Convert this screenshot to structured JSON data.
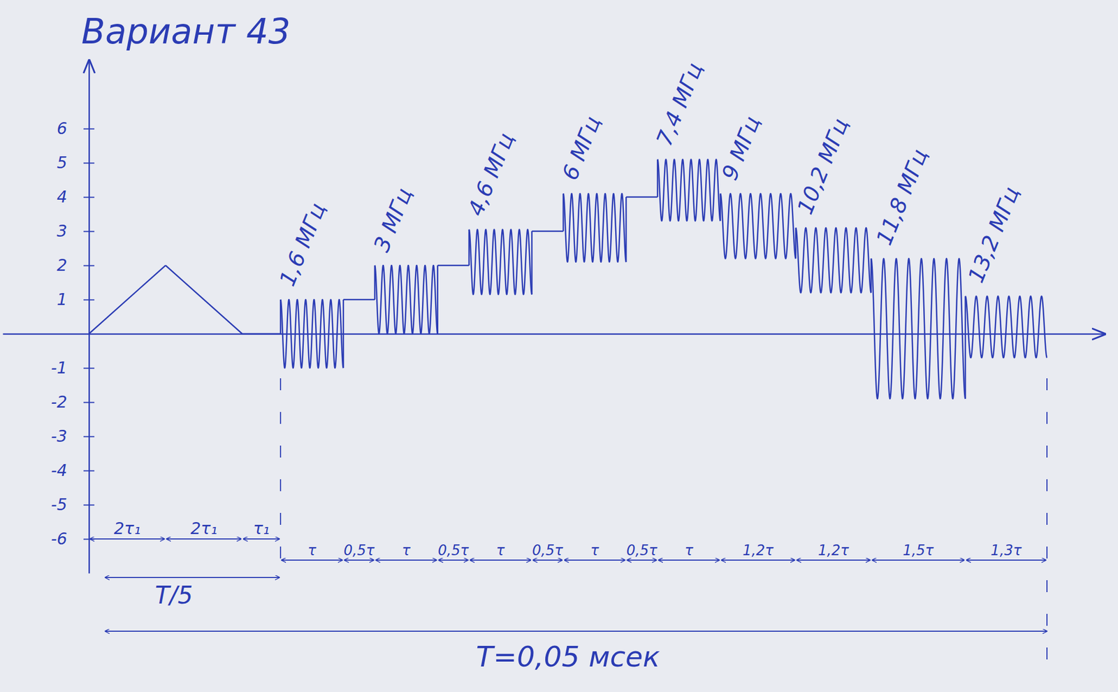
{
  "chart_data": {
    "type": "line",
    "title": "Вариант 43",
    "color": "#2b3cb4",
    "xlim": [
      -0.0045,
      0.053
    ],
    "ylim": [
      -7,
      8
    ],
    "yticks": [
      -6,
      -5,
      -4,
      -3,
      -2,
      -1,
      1,
      2,
      3,
      4,
      5,
      6
    ],
    "tick_labels": "y",
    "period": 0.05,
    "period_label": "T=0,05 мсек",
    "fifth_label": "T/5",
    "segments": [
      {
        "type": "ramp",
        "from": 0,
        "to": 2,
        "duration": 0.004,
        "duration_label": "2τ₁"
      },
      {
        "type": "ramp",
        "from": 2,
        "to": 0,
        "duration": 0.004,
        "duration_label": "2τ₁"
      },
      {
        "type": "ramp",
        "from": 0,
        "to": 0,
        "duration": 0.002,
        "duration_label": "τ₁"
      },
      {
        "type": "burst",
        "level": 0,
        "amplitude": 1,
        "duration": 0.003279,
        "duration_label": "τ",
        "frequency_label": "1,6 МГц"
      },
      {
        "type": "ramp",
        "from": 1,
        "to": 1,
        "duration": 0.00164,
        "duration_label": "0,5τ"
      },
      {
        "type": "burst",
        "level": 1,
        "amplitude": 1,
        "duration": 0.003279,
        "duration_label": "τ",
        "frequency_label": "3 МГц"
      },
      {
        "type": "ramp",
        "from": 2,
        "to": 2,
        "duration": 0.00164,
        "duration_label": "0,5τ"
      },
      {
        "type": "burst",
        "level": 2.1,
        "amplitude": 0.95,
        "duration": 0.003279,
        "duration_label": "τ",
        "frequency_label": "4,6 МГц"
      },
      {
        "type": "ramp",
        "from": 3,
        "to": 3,
        "duration": 0.00164,
        "duration_label": "0,5τ"
      },
      {
        "type": "burst",
        "level": 3.1,
        "amplitude": 1,
        "duration": 0.003279,
        "duration_label": "τ",
        "frequency_label": "6 МГц"
      },
      {
        "type": "ramp",
        "from": 4,
        "to": 4,
        "duration": 0.00164,
        "duration_label": "0,5τ"
      },
      {
        "type": "burst",
        "level": 4.2,
        "amplitude": 0.9,
        "duration": 0.003279,
        "duration_label": "τ",
        "frequency_label": "7,4 МГц"
      },
      {
        "type": "burst",
        "level": 3.15,
        "amplitude": 0.95,
        "duration": 0.003934,
        "duration_label": "1,2τ",
        "frequency_label": "9 МГц"
      },
      {
        "type": "burst",
        "level": 2.15,
        "amplitude": 0.95,
        "duration": 0.003934,
        "duration_label": "1,2τ",
        "frequency_label": "10,2 МГц"
      },
      {
        "type": "burst",
        "level": 0.15,
        "amplitude": 2.05,
        "duration": 0.004918,
        "duration_label": "1,5τ",
        "frequency_label": "11,8 МГц"
      },
      {
        "type": "burst",
        "level": 0.2,
        "amplitude": 0.9,
        "duration": 0.004262,
        "duration_label": "1,3τ",
        "frequency_label": "13,2 МГц"
      }
    ]
  }
}
